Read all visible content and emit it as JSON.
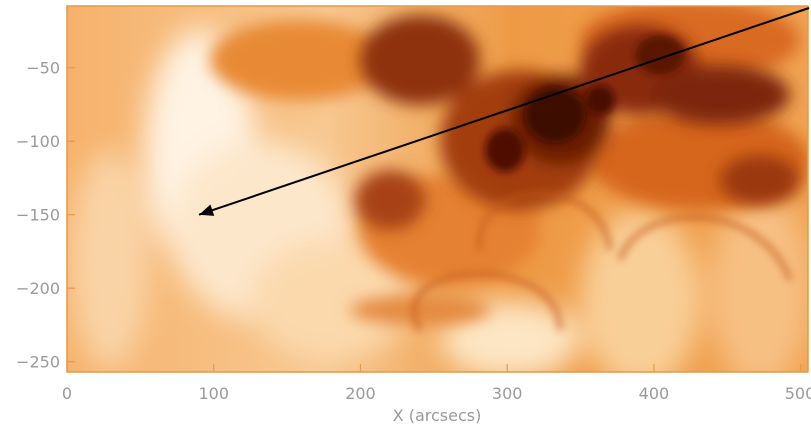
{
  "image": {
    "description_kind": "solar EUV intensity map (false color orange)",
    "colors": {
      "bright": "#fff6ea",
      "light": "#f8c98f",
      "mid": "#f09a45",
      "orange": "#e07a22",
      "dark": "#b14a12",
      "darker": "#7d2508",
      "darkest": "#4a0d02",
      "axis": "#e39a49",
      "text": "#9a9a9a",
      "arrow": "#000000"
    }
  },
  "axes": {
    "xlabel": "X (arcsecs)",
    "x_ticks": [
      {
        "value": 0,
        "label": "0"
      },
      {
        "value": 100,
        "label": "100"
      },
      {
        "value": 200,
        "label": "200"
      },
      {
        "value": 300,
        "label": "300"
      },
      {
        "value": 400,
        "label": "400"
      },
      {
        "value": 500,
        "label": "500"
      }
    ],
    "y_ticks": [
      {
        "value": -50,
        "label": "−50"
      },
      {
        "value": -100,
        "label": "−100"
      },
      {
        "value": -150,
        "label": "−150"
      },
      {
        "value": -200,
        "label": "−200"
      },
      {
        "value": -250,
        "label": "−250"
      }
    ],
    "xlim": [
      0,
      505
    ],
    "ylim": [
      -257,
      -8
    ]
  },
  "annotation": {
    "arrow_from": {
      "x": 515,
      "y": 2
    },
    "arrow_to": {
      "x": 90,
      "y": -150
    }
  }
}
